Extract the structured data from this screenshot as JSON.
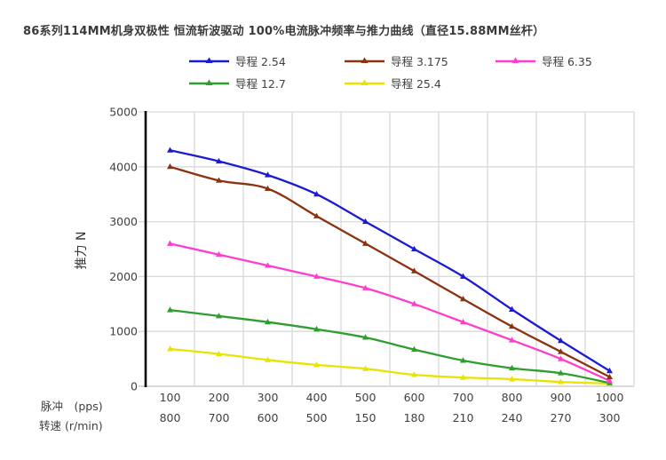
{
  "page": {
    "title": "86系列114MM机身双极性 恒流斩波驱动 100%电流脉冲频率与推力曲线（直径15.88MM丝杆）"
  },
  "chart_data": {
    "type": "line",
    "title": "86系列114MM机身双极性 恒流斩波驱动 100%电流脉冲频率与推力曲线（直径15.88MM丝杆）",
    "ylabel": "推力 N",
    "ylim": [
      0,
      5000
    ],
    "y_ticks": [
      0,
      1000,
      2000,
      3000,
      4000,
      5000
    ],
    "grid": true,
    "legend_position": "top",
    "x_axis_rows": [
      {
        "label": "脉冲　(pps)",
        "values": [
          "100",
          "200",
          "300",
          "400",
          "500",
          "600",
          "700",
          "800",
          "900",
          "1000"
        ]
      },
      {
        "label": "转速 (r/min)",
        "values": [
          "800",
          "700",
          "600",
          "500",
          "150",
          "180",
          "210",
          "240",
          "270",
          "300"
        ]
      }
    ],
    "series": [
      {
        "name": "导程 2.54",
        "color": "#1b1bd1",
        "marker": "triangle",
        "values": [
          4300,
          4100,
          3850,
          3500,
          3000,
          2500,
          2000,
          1400,
          830,
          280
        ]
      },
      {
        "name": "导程 3.175",
        "color": "#8a330e",
        "marker": "triangle",
        "values": [
          4000,
          3750,
          3600,
          3100,
          2600,
          2100,
          1590,
          1090,
          630,
          170
        ]
      },
      {
        "name": "导程 6.35",
        "color": "#ff3dcc",
        "marker": "triangle",
        "values": [
          2600,
          2400,
          2200,
          2000,
          1790,
          1500,
          1170,
          840,
          500,
          100
        ]
      },
      {
        "name": "导程 12.7",
        "color": "#2e9e2e",
        "marker": "triangle",
        "values": [
          1390,
          1280,
          1170,
          1040,
          890,
          670,
          470,
          330,
          240,
          60
        ]
      },
      {
        "name": "导程 25.4",
        "color": "#e8e300",
        "marker": "triangle",
        "values": [
          680,
          590,
          480,
          390,
          320,
          210,
          160,
          130,
          80,
          50
        ]
      }
    ]
  },
  "colors": {
    "gridline": "#d9d9d9",
    "bottom_line": "#c4c4c4",
    "axis": "#000000",
    "tick_text": "#404040",
    "title_text": "#3a3a3a"
  }
}
